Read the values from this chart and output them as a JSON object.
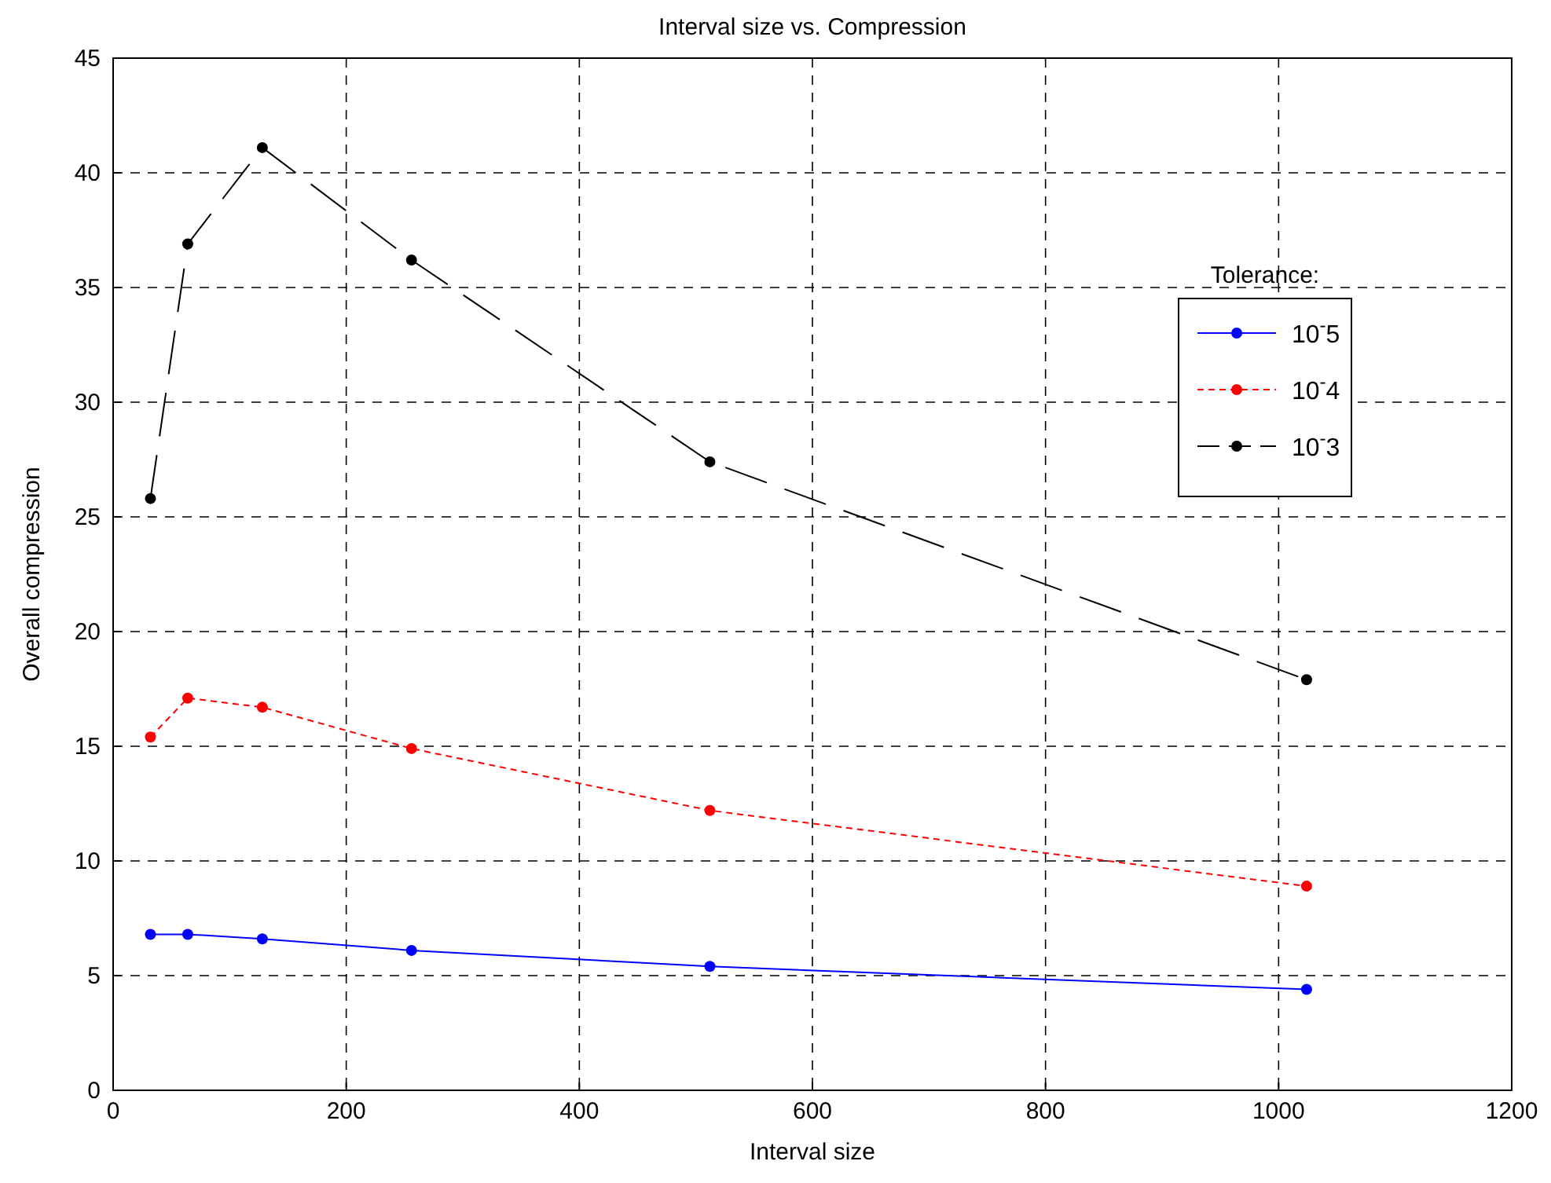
{
  "chart_data": {
    "type": "line",
    "title": "Interval size vs. Compression",
    "xlabel": "Interval size",
    "ylabel": "Overall compression",
    "legend_title": "Tolerance:",
    "legend": "top right",
    "grid": true,
    "marker": "circle",
    "x": [
      32,
      64,
      128,
      256,
      512,
      1024
    ],
    "xlim": [
      0,
      1200
    ],
    "xticks": [
      0,
      200,
      400,
      600,
      800,
      1000,
      1200
    ],
    "ylim": [
      0,
      45
    ],
    "yticks": [
      0,
      5,
      10,
      15,
      20,
      25,
      30,
      35,
      40,
      45
    ],
    "series": [
      {
        "name": "10$^{-}$5",
        "color": "#0000ff",
        "line_style": "solid",
        "values": [
          6.8,
          6.8,
          6.6,
          6.1,
          5.4,
          4.4
        ]
      },
      {
        "name": "10$^{-}$4",
        "color": "#ff0000",
        "line_style": "dotted",
        "values": [
          15.4,
          17.1,
          16.7,
          14.9,
          12.2,
          8.9
        ]
      },
      {
        "name": "10$^{-}$3",
        "color": "#000000",
        "line_style": "dashed",
        "values": [
          25.8,
          36.9,
          41.1,
          36.2,
          27.4,
          17.9
        ]
      }
    ]
  }
}
